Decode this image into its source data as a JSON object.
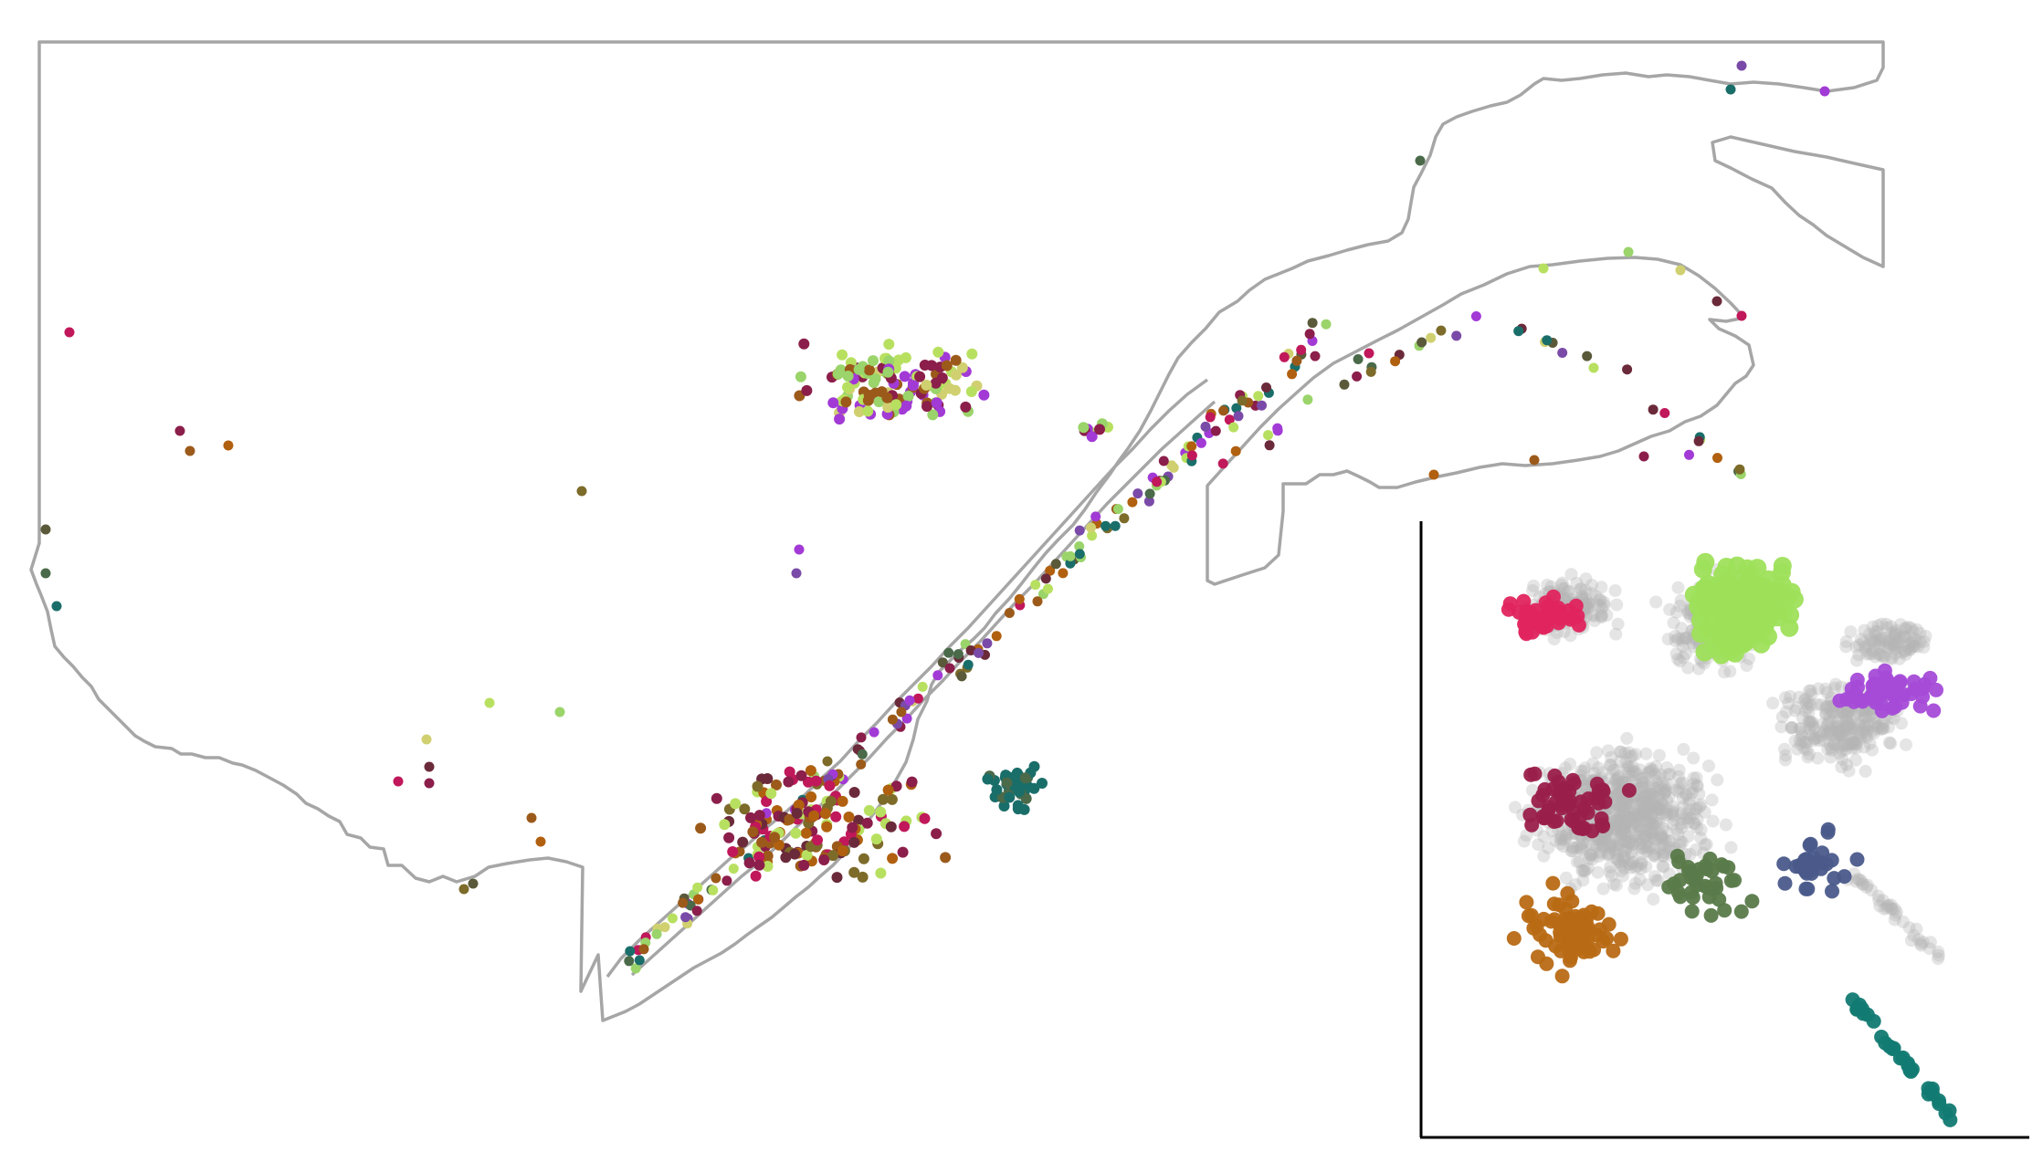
{
  "map": {
    "outline_color": "#a6a6a6",
    "background_color": "#ffffff",
    "point_palette": [
      "#c0185a",
      "#8b1e4a",
      "#9c5a1a",
      "#b0600f",
      "#7d6b2a",
      "#5a5a3a",
      "#4a6a4a",
      "#1a6e6a",
      "#a23ad6",
      "#7a4aa8",
      "#b8e060",
      "#9ad46a",
      "#d0d070",
      "#6b2a3a"
    ]
  },
  "inset": {
    "type": "embedding-scatter",
    "axes_color": "#000000",
    "background_points_color": "#b4b4b4",
    "clusters": [
      {
        "color": "#e0245e"
      },
      {
        "color": "#9ee05a"
      },
      {
        "color": "#a54bd8"
      },
      {
        "color": "#9a1f4a"
      },
      {
        "color": "#b86a14"
      },
      {
        "color": "#5a7a4a"
      },
      {
        "color": "#4a5a8a"
      },
      {
        "color": "#127a72"
      }
    ]
  }
}
